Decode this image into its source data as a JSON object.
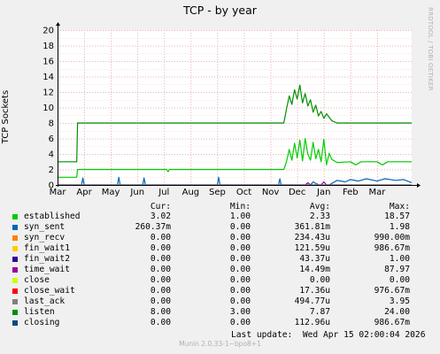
{
  "title": "TCP - by year",
  "watermark": "RRDTOOL / TOBI OETIKER",
  "footer": "Munin 2.0.33-1~bpo8+1",
  "last_update": "Last update:  Wed Apr 15 02:00:04 2026",
  "legend_headers": {
    "cur": "Cur:",
    "min": "Min:",
    "avg": "Avg:",
    "max": "Max:"
  },
  "legend": [
    {
      "name": "established",
      "color": "#00cc00",
      "cur": "3.02",
      "min": "1.00",
      "avg": "2.33",
      "max": "18.57"
    },
    {
      "name": "syn_sent",
      "color": "#0066b3",
      "cur": "260.37m",
      "min": "0.00",
      "avg": "361.81m",
      "max": "1.98"
    },
    {
      "name": "syn_recv",
      "color": "#ff8000",
      "cur": "0.00",
      "min": "0.00",
      "avg": "234.43u",
      "max": "990.00m"
    },
    {
      "name": "fin_wait1",
      "color": "#ffcc00",
      "cur": "0.00",
      "min": "0.00",
      "avg": "121.59u",
      "max": "986.67m"
    },
    {
      "name": "fin_wait2",
      "color": "#330099",
      "cur": "0.00",
      "min": "0.00",
      "avg": "43.37u",
      "max": "1.00"
    },
    {
      "name": "time_wait",
      "color": "#990099",
      "cur": "0.00",
      "min": "0.00",
      "avg": "14.49m",
      "max": "87.97"
    },
    {
      "name": "close",
      "color": "#ccff00",
      "cur": "0.00",
      "min": "0.00",
      "avg": "0.00",
      "max": "0.00"
    },
    {
      "name": "close_wait",
      "color": "#ff0000",
      "cur": "0.00",
      "min": "0.00",
      "avg": "17.36u",
      "max": "976.67m"
    },
    {
      "name": "last_ack",
      "color": "#808080",
      "cur": "0.00",
      "min": "0.00",
      "avg": "494.77u",
      "max": "3.95"
    },
    {
      "name": "listen",
      "color": "#008f00",
      "cur": "8.00",
      "min": "3.00",
      "avg": "7.87",
      "max": "24.00"
    },
    {
      "name": "closing",
      "color": "#00487d",
      "cur": "0.00",
      "min": "0.00",
      "avg": "112.96u",
      "max": "986.67m"
    }
  ],
  "chart_data": {
    "type": "line",
    "title": "TCP - by year",
    "ylabel": "TCP Sockets",
    "xlabel": "",
    "ylim": [
      0,
      20
    ],
    "y_ticks": [
      0,
      2,
      4,
      6,
      8,
      10,
      12,
      14,
      16,
      18,
      20
    ],
    "x_ticks": [
      "Mar",
      "Apr",
      "May",
      "Jun",
      "Jul",
      "Aug",
      "Sep",
      "Oct",
      "Nov",
      "Dec",
      "Jan",
      "Feb",
      "Mar"
    ],
    "x_range_months": [
      0,
      13.3
    ],
    "grid": true,
    "series": [
      {
        "name": "listen",
        "color": "#008f00",
        "points": [
          [
            0,
            3
          ],
          [
            0.72,
            3
          ],
          [
            0.75,
            8
          ],
          [
            8.5,
            8
          ],
          [
            8.6,
            9.8
          ],
          [
            8.7,
            11.5
          ],
          [
            8.8,
            10.4
          ],
          [
            8.9,
            12.3
          ],
          [
            9.0,
            11.1
          ],
          [
            9.1,
            12.9
          ],
          [
            9.2,
            10.6
          ],
          [
            9.3,
            11.8
          ],
          [
            9.4,
            10.2
          ],
          [
            9.5,
            11.0
          ],
          [
            9.6,
            9.4
          ],
          [
            9.7,
            10.3
          ],
          [
            9.8,
            8.9
          ],
          [
            9.9,
            9.5
          ],
          [
            10.0,
            8.6
          ],
          [
            10.1,
            9.2
          ],
          [
            10.3,
            8.3
          ],
          [
            10.5,
            8
          ],
          [
            13.3,
            8
          ]
        ]
      },
      {
        "name": "established",
        "color": "#00cc00",
        "points": [
          [
            0,
            1
          ],
          [
            0.72,
            1
          ],
          [
            0.75,
            2
          ],
          [
            4.1,
            2
          ],
          [
            4.15,
            1.7
          ],
          [
            4.2,
            2
          ],
          [
            8.5,
            2
          ],
          [
            8.6,
            3.0
          ],
          [
            8.7,
            4.6
          ],
          [
            8.8,
            3.2
          ],
          [
            8.9,
            5.4
          ],
          [
            9.0,
            3.5
          ],
          [
            9.1,
            5.8
          ],
          [
            9.2,
            3.1
          ],
          [
            9.3,
            6.0
          ],
          [
            9.4,
            4.0
          ],
          [
            9.5,
            3.2
          ],
          [
            9.6,
            5.5
          ],
          [
            9.7,
            3.4
          ],
          [
            9.8,
            4.6
          ],
          [
            9.9,
            3.0
          ],
          [
            10.0,
            5.9
          ],
          [
            10.1,
            2.6
          ],
          [
            10.2,
            4.1
          ],
          [
            10.3,
            3.3
          ],
          [
            10.5,
            2.9
          ],
          [
            11.0,
            3.0
          ],
          [
            11.2,
            2.6
          ],
          [
            11.4,
            3.0
          ],
          [
            12.0,
            3.0
          ],
          [
            12.2,
            2.6
          ],
          [
            12.4,
            3.0
          ],
          [
            13.3,
            3.0
          ]
        ]
      },
      {
        "name": "syn_sent",
        "color": "#0066b3",
        "points": [
          [
            0,
            0
          ],
          [
            0.9,
            0
          ],
          [
            0.95,
            0.9
          ],
          [
            1.0,
            0
          ],
          [
            2.25,
            0
          ],
          [
            2.3,
            1.0
          ],
          [
            2.35,
            0
          ],
          [
            3.2,
            0
          ],
          [
            3.25,
            0.9
          ],
          [
            3.3,
            0
          ],
          [
            6.0,
            0
          ],
          [
            6.05,
            1.0
          ],
          [
            6.1,
            0
          ],
          [
            8.3,
            0
          ],
          [
            8.35,
            0.8
          ],
          [
            8.4,
            0
          ],
          [
            9.5,
            0
          ],
          [
            9.6,
            0.4
          ],
          [
            9.8,
            0
          ],
          [
            10.2,
            0
          ],
          [
            10.5,
            0.6
          ],
          [
            10.8,
            0.4
          ],
          [
            11.0,
            0.7
          ],
          [
            11.3,
            0.5
          ],
          [
            11.6,
            0.8
          ],
          [
            12.0,
            0.5
          ],
          [
            12.3,
            0.8
          ],
          [
            12.7,
            0.6
          ],
          [
            13.0,
            0.7
          ],
          [
            13.3,
            0.3
          ]
        ]
      },
      {
        "name": "time_wait",
        "color": "#990099",
        "points": [
          [
            0,
            0
          ],
          [
            9.3,
            0
          ],
          [
            9.4,
            0.3
          ],
          [
            9.5,
            0
          ],
          [
            9.9,
            0
          ],
          [
            10.0,
            0.4
          ],
          [
            10.1,
            0
          ],
          [
            13.3,
            0
          ]
        ]
      },
      {
        "name": "last_ack",
        "color": "#808080",
        "points": [
          [
            0,
            0
          ],
          [
            9.7,
            0
          ],
          [
            9.75,
            0.2
          ],
          [
            9.8,
            0
          ],
          [
            13.3,
            0
          ]
        ]
      }
    ]
  }
}
